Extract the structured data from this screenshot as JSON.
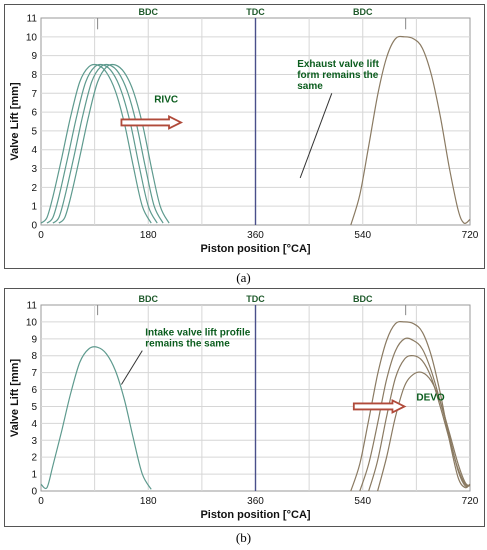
{
  "chart_data": [
    {
      "type": "line",
      "xlabel": "Piston position [°CA]",
      "ylabel": "Valve Lift [mm]",
      "xlim": [
        0,
        720
      ],
      "ylim": [
        0,
        11
      ],
      "xticks": [
        "0",
        "180",
        "360",
        "540",
        "720"
      ],
      "yticks": [
        "0",
        "1",
        "2",
        "3",
        "4",
        "5",
        "6",
        "7",
        "8",
        "9",
        "10",
        "11"
      ],
      "top_labels": [
        {
          "text": "BDC",
          "x": 180
        },
        {
          "text": "TDC",
          "x": 360
        },
        {
          "text": "BDC",
          "x": 540
        }
      ],
      "grid": true,
      "series": [
        {
          "color": "#5e9a8e",
          "x": [
            0,
            10,
            20,
            35,
            50,
            65,
            80,
            95,
            110,
            125,
            140,
            155,
            170,
            185
          ],
          "y": [
            0.1,
            0.4,
            1.5,
            3.6,
            5.8,
            7.6,
            8.4,
            8.5,
            8.1,
            7.1,
            5.4,
            3.1,
            1.0,
            0.1
          ]
        },
        {
          "color": "#5e9a8e",
          "x": [
            10,
            20,
            30,
            45,
            60,
            75,
            90,
            105,
            120,
            135,
            150,
            165,
            180,
            195
          ],
          "y": [
            0.1,
            0.4,
            1.5,
            3.6,
            5.8,
            7.6,
            8.4,
            8.5,
            8.1,
            7.1,
            5.4,
            3.1,
            1.0,
            0.1
          ]
        },
        {
          "color": "#5e9a8e",
          "x": [
            20,
            30,
            40,
            55,
            70,
            85,
            100,
            115,
            130,
            145,
            160,
            175,
            190,
            205
          ],
          "y": [
            0.1,
            0.4,
            1.5,
            3.6,
            5.8,
            7.6,
            8.4,
            8.5,
            8.1,
            7.1,
            5.4,
            3.1,
            1.0,
            0.1
          ]
        },
        {
          "color": "#5e9a8e",
          "x": [
            30,
            40,
            50,
            65,
            80,
            95,
            110,
            125,
            140,
            155,
            170,
            185,
            200,
            215
          ],
          "y": [
            0.1,
            0.4,
            1.5,
            3.6,
            5.8,
            7.6,
            8.4,
            8.5,
            8.1,
            7.1,
            5.4,
            3.1,
            1.0,
            0.1
          ]
        },
        {
          "color": "#8a7a62",
          "x": [
            520,
            535,
            550,
            565,
            580,
            595,
            610,
            625,
            640,
            655,
            670,
            685,
            700,
            710,
            720
          ],
          "y": [
            0.0,
            1.6,
            4.2,
            6.9,
            8.9,
            9.9,
            10.0,
            9.9,
            9.4,
            8.0,
            5.8,
            3.1,
            0.8,
            0.1,
            0.3
          ]
        }
      ],
      "annotations": [
        {
          "text": "RIVC",
          "color": "#0b5d1e",
          "x": 190,
          "y": 6.5
        },
        {
          "text": "Exhaust valve lift\nform remains the\nsame",
          "color": "#0b5d1e",
          "x": 430,
          "y": 8.4
        }
      ],
      "arrow": {
        "x1": 135,
        "x2": 235,
        "y": 5.45,
        "color": "#b04a3a"
      },
      "pointer": {
        "x1": 488,
        "y1": 7.0,
        "x2": 435,
        "y2": 2.5
      },
      "caption": "(a)"
    },
    {
      "type": "line",
      "xlabel": "Piston position [°CA]",
      "ylabel": "Valve Lift [mm]",
      "xlim": [
        0,
        720
      ],
      "ylim": [
        0,
        11
      ],
      "xticks": [
        "0",
        "180",
        "360",
        "540",
        "720"
      ],
      "yticks": [
        "0",
        "1",
        "2",
        "3",
        "4",
        "5",
        "6",
        "7",
        "8",
        "9",
        "10",
        "11"
      ],
      "top_labels": [
        {
          "text": "BDC",
          "x": 180
        },
        {
          "text": "TDC",
          "x": 360
        },
        {
          "text": "BDC",
          "x": 540
        }
      ],
      "grid": true,
      "series": [
        {
          "color": "#5e9a8e",
          "x": [
            0,
            10,
            20,
            35,
            50,
            65,
            80,
            95,
            110,
            125,
            140,
            155,
            170,
            185
          ],
          "y": [
            0.4,
            0.2,
            1.5,
            3.6,
            5.8,
            7.6,
            8.4,
            8.5,
            8.1,
            7.1,
            5.4,
            3.1,
            1.0,
            0.1
          ]
        },
        {
          "color": "#8a7a62",
          "x": [
            520,
            535,
            550,
            565,
            580,
            595,
            610,
            625,
            640,
            655,
            670,
            685,
            700,
            712,
            720
          ],
          "y": [
            0.0,
            1.6,
            4.2,
            6.9,
            8.9,
            9.9,
            10.0,
            9.9,
            9.4,
            8.0,
            5.8,
            3.1,
            0.8,
            0.2,
            0.4
          ]
        },
        {
          "color": "#8a7a62",
          "x": [
            535,
            550,
            565,
            580,
            595,
            610,
            625,
            640,
            655,
            670,
            685,
            700,
            712,
            720
          ],
          "y": [
            0.0,
            1.6,
            4.0,
            6.6,
            8.3,
            9.0,
            8.9,
            8.4,
            7.1,
            5.3,
            3.3,
            1.2,
            0.3,
            0.4
          ]
        },
        {
          "color": "#8a7a62",
          "x": [
            550,
            565,
            580,
            595,
            610,
            625,
            640,
            655,
            670,
            685,
            700,
            712,
            720
          ],
          "y": [
            0.0,
            1.8,
            4.4,
            6.7,
            7.8,
            8.0,
            7.7,
            6.7,
            5.0,
            3.1,
            1.3,
            0.4,
            0.3
          ]
        },
        {
          "color": "#8a7a62",
          "x": [
            565,
            580,
            595,
            610,
            625,
            640,
            655,
            670,
            685,
            700,
            712,
            720
          ],
          "y": [
            0.0,
            2.0,
            4.4,
            6.2,
            6.9,
            7.0,
            6.5,
            5.3,
            3.5,
            1.6,
            0.5,
            0.3
          ]
        }
      ],
      "annotations": [
        {
          "text": "Intake valve lift profile\nremains the same",
          "color": "#0b5d1e",
          "x": 175,
          "y": 9.2
        },
        {
          "text": "DEVO",
          "color": "#0b5d1e",
          "x": 630,
          "y": 5.35
        }
      ],
      "arrow": {
        "x1": 525,
        "x2": 610,
        "y": 5.0,
        "color": "#b04a3a"
      },
      "pointer": {
        "x1": 170,
        "y1": 8.3,
        "x2": 135,
        "y2": 6.3
      },
      "caption": "(b)"
    }
  ]
}
